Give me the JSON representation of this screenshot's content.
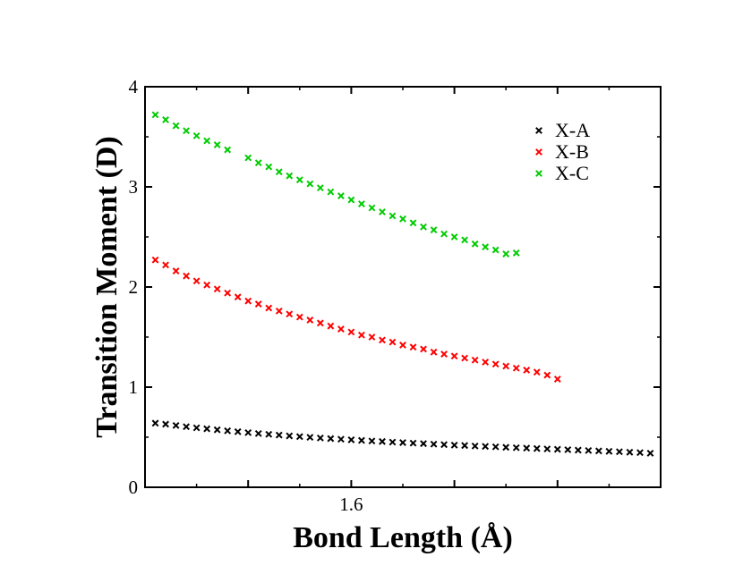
{
  "chart_data": {
    "type": "scatter",
    "title": "",
    "xlabel": "Bond Length (Å)",
    "ylabel": "Transition Moment (D)",
    "xlim": [
      1.4,
      1.9
    ],
    "ylim": [
      0,
      4
    ],
    "xticks": [
      1.5,
      1.6,
      1.7,
      1.8,
      1.9
    ],
    "xtick_labels": [
      "",
      "1.6",
      "",
      "",
      ""
    ],
    "yticks": [
      0,
      1,
      2,
      3,
      4
    ],
    "ytick_labels": [
      "0",
      "1",
      "2",
      "3",
      "4"
    ],
    "grid": false,
    "marker": "x",
    "legend_position": "top-right",
    "series": [
      {
        "name": "X-A",
        "color": "#000000",
        "x": [
          1.41,
          1.42,
          1.43,
          1.44,
          1.45,
          1.46,
          1.47,
          1.48,
          1.49,
          1.5,
          1.51,
          1.52,
          1.53,
          1.54,
          1.55,
          1.56,
          1.57,
          1.58,
          1.59,
          1.6,
          1.61,
          1.62,
          1.63,
          1.64,
          1.65,
          1.66,
          1.67,
          1.68,
          1.69,
          1.7,
          1.71,
          1.72,
          1.73,
          1.74,
          1.75,
          1.76,
          1.77,
          1.78,
          1.79,
          1.8,
          1.81,
          1.82,
          1.83,
          1.84,
          1.85,
          1.86,
          1.87,
          1.88,
          1.89
        ],
        "y": [
          0.64,
          0.63,
          0.617,
          0.605,
          0.594,
          0.584,
          0.574,
          0.564,
          0.555,
          0.546,
          0.537,
          0.529,
          0.521,
          0.513,
          0.506,
          0.499,
          0.492,
          0.486,
          0.48,
          0.474,
          0.468,
          0.462,
          0.457,
          0.451,
          0.446,
          0.441,
          0.436,
          0.431,
          0.426,
          0.421,
          0.417,
          0.412,
          0.408,
          0.404,
          0.399,
          0.395,
          0.391,
          0.387,
          0.383,
          0.379,
          0.375,
          0.371,
          0.367,
          0.363,
          0.359,
          0.355,
          0.35,
          0.346,
          0.34
        ]
      },
      {
        "name": "X-B",
        "color": "#ff0000",
        "x": [
          1.41,
          1.42,
          1.43,
          1.44,
          1.45,
          1.46,
          1.47,
          1.48,
          1.49,
          1.5,
          1.51,
          1.52,
          1.53,
          1.54,
          1.55,
          1.56,
          1.57,
          1.58,
          1.59,
          1.6,
          1.61,
          1.62,
          1.63,
          1.64,
          1.65,
          1.66,
          1.67,
          1.68,
          1.69,
          1.7,
          1.71,
          1.72,
          1.73,
          1.74,
          1.75,
          1.76,
          1.77,
          1.78,
          1.79,
          1.8
        ],
        "y": [
          2.27,
          2.22,
          2.16,
          2.11,
          2.06,
          2.02,
          1.98,
          1.94,
          1.9,
          1.86,
          1.83,
          1.79,
          1.76,
          1.73,
          1.7,
          1.67,
          1.64,
          1.61,
          1.58,
          1.55,
          1.52,
          1.5,
          1.47,
          1.45,
          1.42,
          1.4,
          1.38,
          1.35,
          1.33,
          1.31,
          1.29,
          1.27,
          1.25,
          1.23,
          1.21,
          1.19,
          1.17,
          1.15,
          1.12,
          1.08
        ]
      },
      {
        "name": "X-C",
        "color": "#00cc00",
        "x": [
          1.41,
          1.42,
          1.43,
          1.44,
          1.45,
          1.46,
          1.47,
          1.48,
          1.5,
          1.51,
          1.52,
          1.53,
          1.54,
          1.55,
          1.56,
          1.57,
          1.58,
          1.59,
          1.6,
          1.61,
          1.62,
          1.63,
          1.64,
          1.65,
          1.66,
          1.67,
          1.68,
          1.69,
          1.7,
          1.71,
          1.72,
          1.73,
          1.74,
          1.75,
          1.76
        ],
        "y": [
          3.72,
          3.67,
          3.61,
          3.56,
          3.51,
          3.46,
          3.42,
          3.37,
          3.29,
          3.24,
          3.2,
          3.15,
          3.11,
          3.07,
          3.03,
          2.99,
          2.95,
          2.91,
          2.87,
          2.83,
          2.79,
          2.75,
          2.71,
          2.68,
          2.64,
          2.6,
          2.57,
          2.53,
          2.5,
          2.47,
          2.43,
          2.4,
          2.37,
          2.33,
          2.34
        ]
      }
    ]
  }
}
